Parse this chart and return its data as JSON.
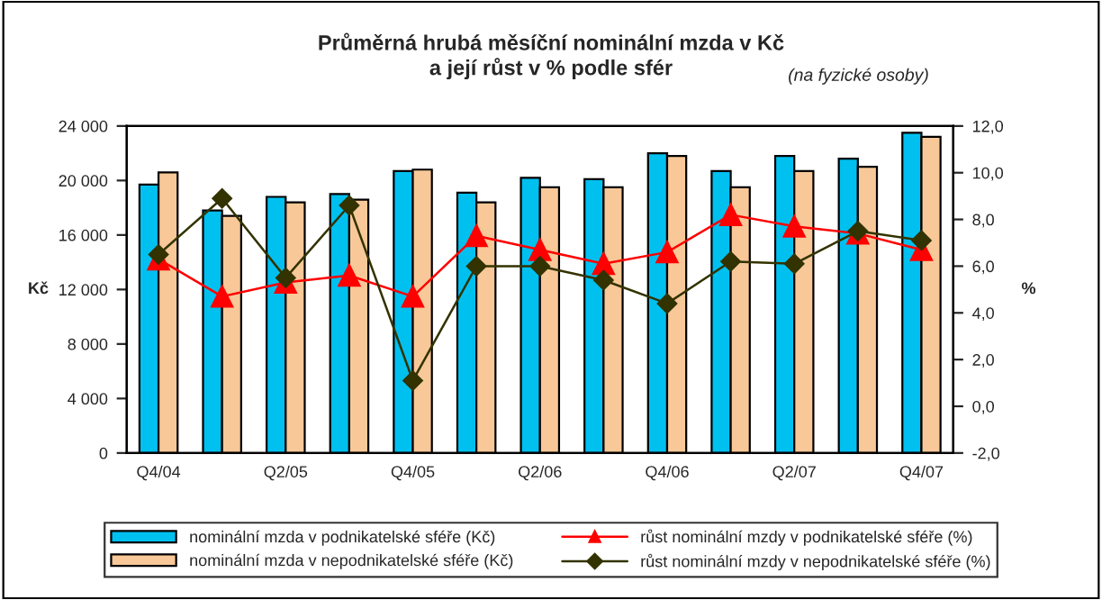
{
  "chart_data": {
    "type": "bar",
    "title": "Průměrná hrubá měsíční nominální mzda v Kč\na její růst v % podle sfér",
    "subtitle": "(na fyzické osoby)",
    "ylabel": "Kč",
    "y2label": "%",
    "categories": [
      "Q4/04",
      null,
      "Q2/05",
      null,
      "Q4/05",
      null,
      "Q2/06",
      null,
      "Q4/06",
      null,
      "Q2/07",
      null,
      "Q4/07"
    ],
    "series": [
      {
        "name": "nominální mzda v podnikatelské sféře (Kč)",
        "color": "#00c0f0",
        "values": [
          19700,
          17800,
          18800,
          19000,
          20700,
          19100,
          20200,
          20100,
          22000,
          20700,
          21800,
          21600,
          23500
        ]
      },
      {
        "name": "nominální mzda v nepodnikatelské sféře (Kč)",
        "color": "#f8c898",
        "values": [
          20600,
          17400,
          18400,
          18600,
          20800,
          18400,
          19500,
          19500,
          21800,
          19500,
          20700,
          21000,
          23200
        ]
      },
      {
        "name": "růst nominální mzdy v podnikatelské sféře (%)",
        "type": "line",
        "axis": "y2",
        "marker": "triangle",
        "color": "#ff0000",
        "values": [
          6.3,
          4.7,
          5.3,
          5.6,
          4.7,
          7.3,
          6.7,
          6.1,
          6.6,
          8.2,
          7.7,
          7.4,
          6.7
        ]
      },
      {
        "name": "růst nominální mzdy v nepodnikatelské sféře (%)",
        "type": "line",
        "axis": "y2",
        "marker": "diamond",
        "color": "#333300",
        "values": [
          6.5,
          8.9,
          5.5,
          8.6,
          1.1,
          6.0,
          6.0,
          5.4,
          4.4,
          6.2,
          6.1,
          7.5,
          7.1
        ]
      }
    ],
    "ylim": [
      0,
      24000
    ],
    "yticks": [
      {
        "value": 0,
        "label": "0"
      },
      {
        "value": 4000,
        "label": "4 000"
      },
      {
        "value": 8000,
        "label": "8 000"
      },
      {
        "value": 12000,
        "label": "12 000"
      },
      {
        "value": 16000,
        "label": "16 000"
      },
      {
        "value": 20000,
        "label": "20 000"
      },
      {
        "value": 24000,
        "label": "24 000"
      }
    ],
    "y2lim": [
      -2,
      12
    ],
    "y2ticks": [
      {
        "value": -2,
        "label": "-2,0"
      },
      {
        "value": 0,
        "label": "0,0"
      },
      {
        "value": 2,
        "label": "2,0"
      },
      {
        "value": 4,
        "label": "4,0"
      },
      {
        "value": 6,
        "label": "6,0"
      },
      {
        "value": 8,
        "label": "8,0"
      },
      {
        "value": 10,
        "label": "10,0"
      },
      {
        "value": 12,
        "label": "12,0"
      }
    ],
    "grid": false,
    "legend": "bottom"
  }
}
